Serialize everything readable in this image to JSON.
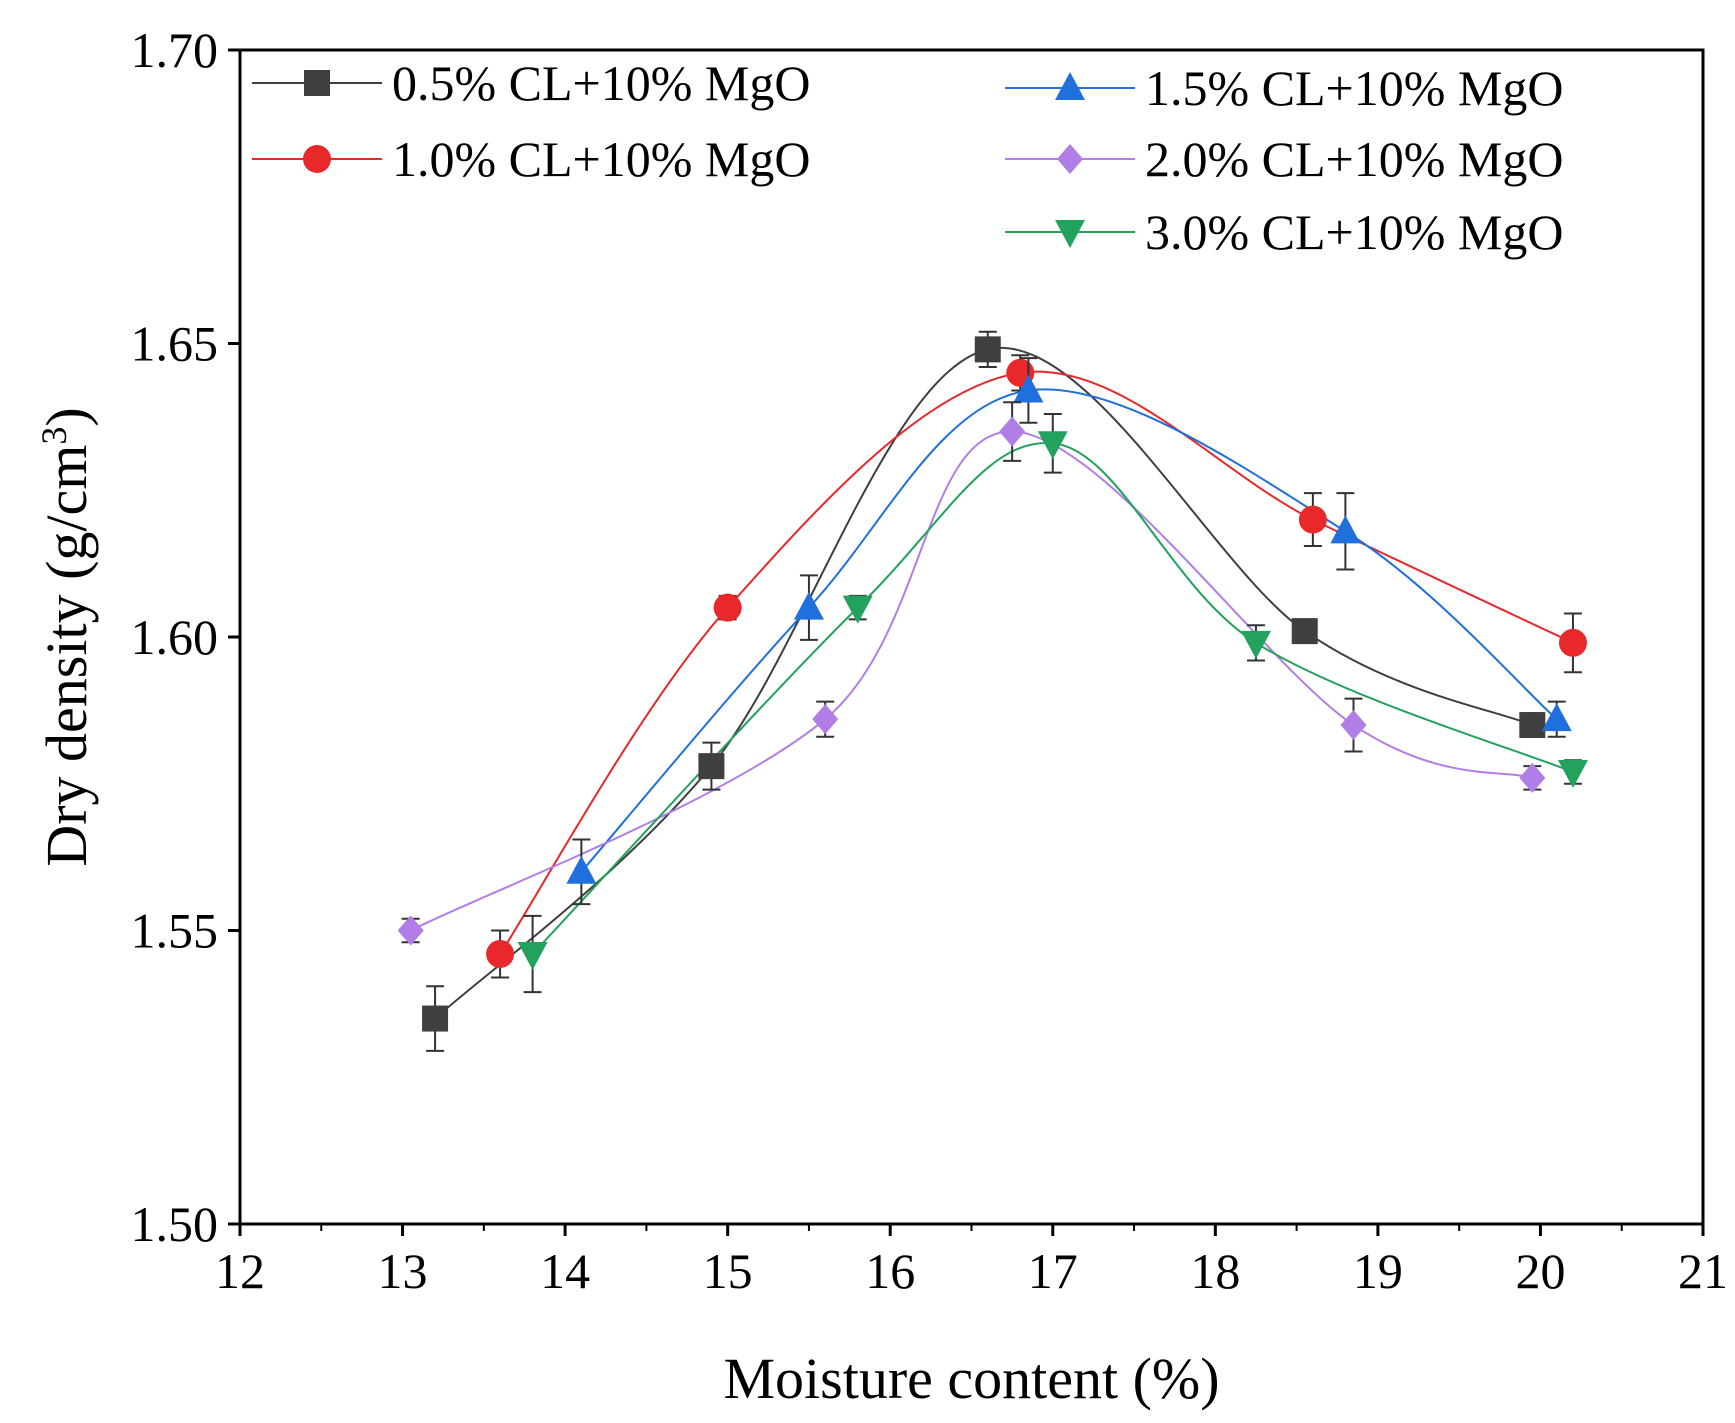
{
  "chart_data": {
    "type": "line",
    "xlabel": "Moisture content (%)",
    "ylabel_main": "Dry density (g/cm",
    "ylabel_sup": "3",
    "ylabel_close": ")",
    "xlim": [
      12,
      21
    ],
    "ylim": [
      1.5,
      1.7
    ],
    "xticks": [
      "12",
      "13",
      "14",
      "15",
      "16",
      "17",
      "18",
      "19",
      "20",
      "21"
    ],
    "yticks": [
      "1.50",
      "1.55",
      "1.60",
      "1.65",
      "1.70"
    ],
    "legend_position": "top",
    "series": [
      {
        "name": "0.5% CL+10% MgO",
        "color": "#3f3f3f",
        "marker": "square",
        "x": [
          13.2,
          14.9,
          16.6,
          18.55,
          19.95
        ],
        "y": [
          1.535,
          1.578,
          1.649,
          1.601,
          1.585
        ],
        "err": [
          0.0055,
          0.004,
          0.003,
          0.002,
          0.002
        ]
      },
      {
        "name": "1.0% CL+10% MgO",
        "color": "#e8282a",
        "marker": "circle",
        "x": [
          13.6,
          15.0,
          16.8,
          18.6,
          20.2
        ],
        "y": [
          1.546,
          1.605,
          1.645,
          1.62,
          1.599
        ],
        "err": [
          0.004,
          0.002,
          0.003,
          0.0045,
          0.005
        ]
      },
      {
        "name": "1.5% CL+10% MgO",
        "color": "#1f6fdc",
        "marker": "triangle-up",
        "x": [
          14.1,
          15.5,
          16.85,
          18.8,
          20.1
        ],
        "y": [
          1.56,
          1.605,
          1.642,
          1.618,
          1.586
        ],
        "err": [
          0.0055,
          0.0055,
          0.0055,
          0.0065,
          0.003
        ]
      },
      {
        "name": "2.0% CL+10% MgO",
        "color": "#b07ee6",
        "marker": "diamond",
        "x": [
          13.05,
          15.6,
          16.75,
          18.85,
          19.95
        ],
        "y": [
          1.55,
          1.586,
          1.635,
          1.585,
          1.576
        ],
        "err": [
          0.002,
          0.003,
          0.005,
          0.0045,
          0.002
        ]
      },
      {
        "name": "3.0% CL+10% MgO",
        "color": "#22a25d",
        "marker": "triangle-down",
        "x": [
          13.8,
          15.8,
          17.0,
          18.25,
          20.2
        ],
        "y": [
          1.546,
          1.605,
          1.633,
          1.599,
          1.577
        ],
        "err": [
          0.0065,
          0.002,
          0.005,
          0.003,
          0.002
        ]
      }
    ]
  }
}
